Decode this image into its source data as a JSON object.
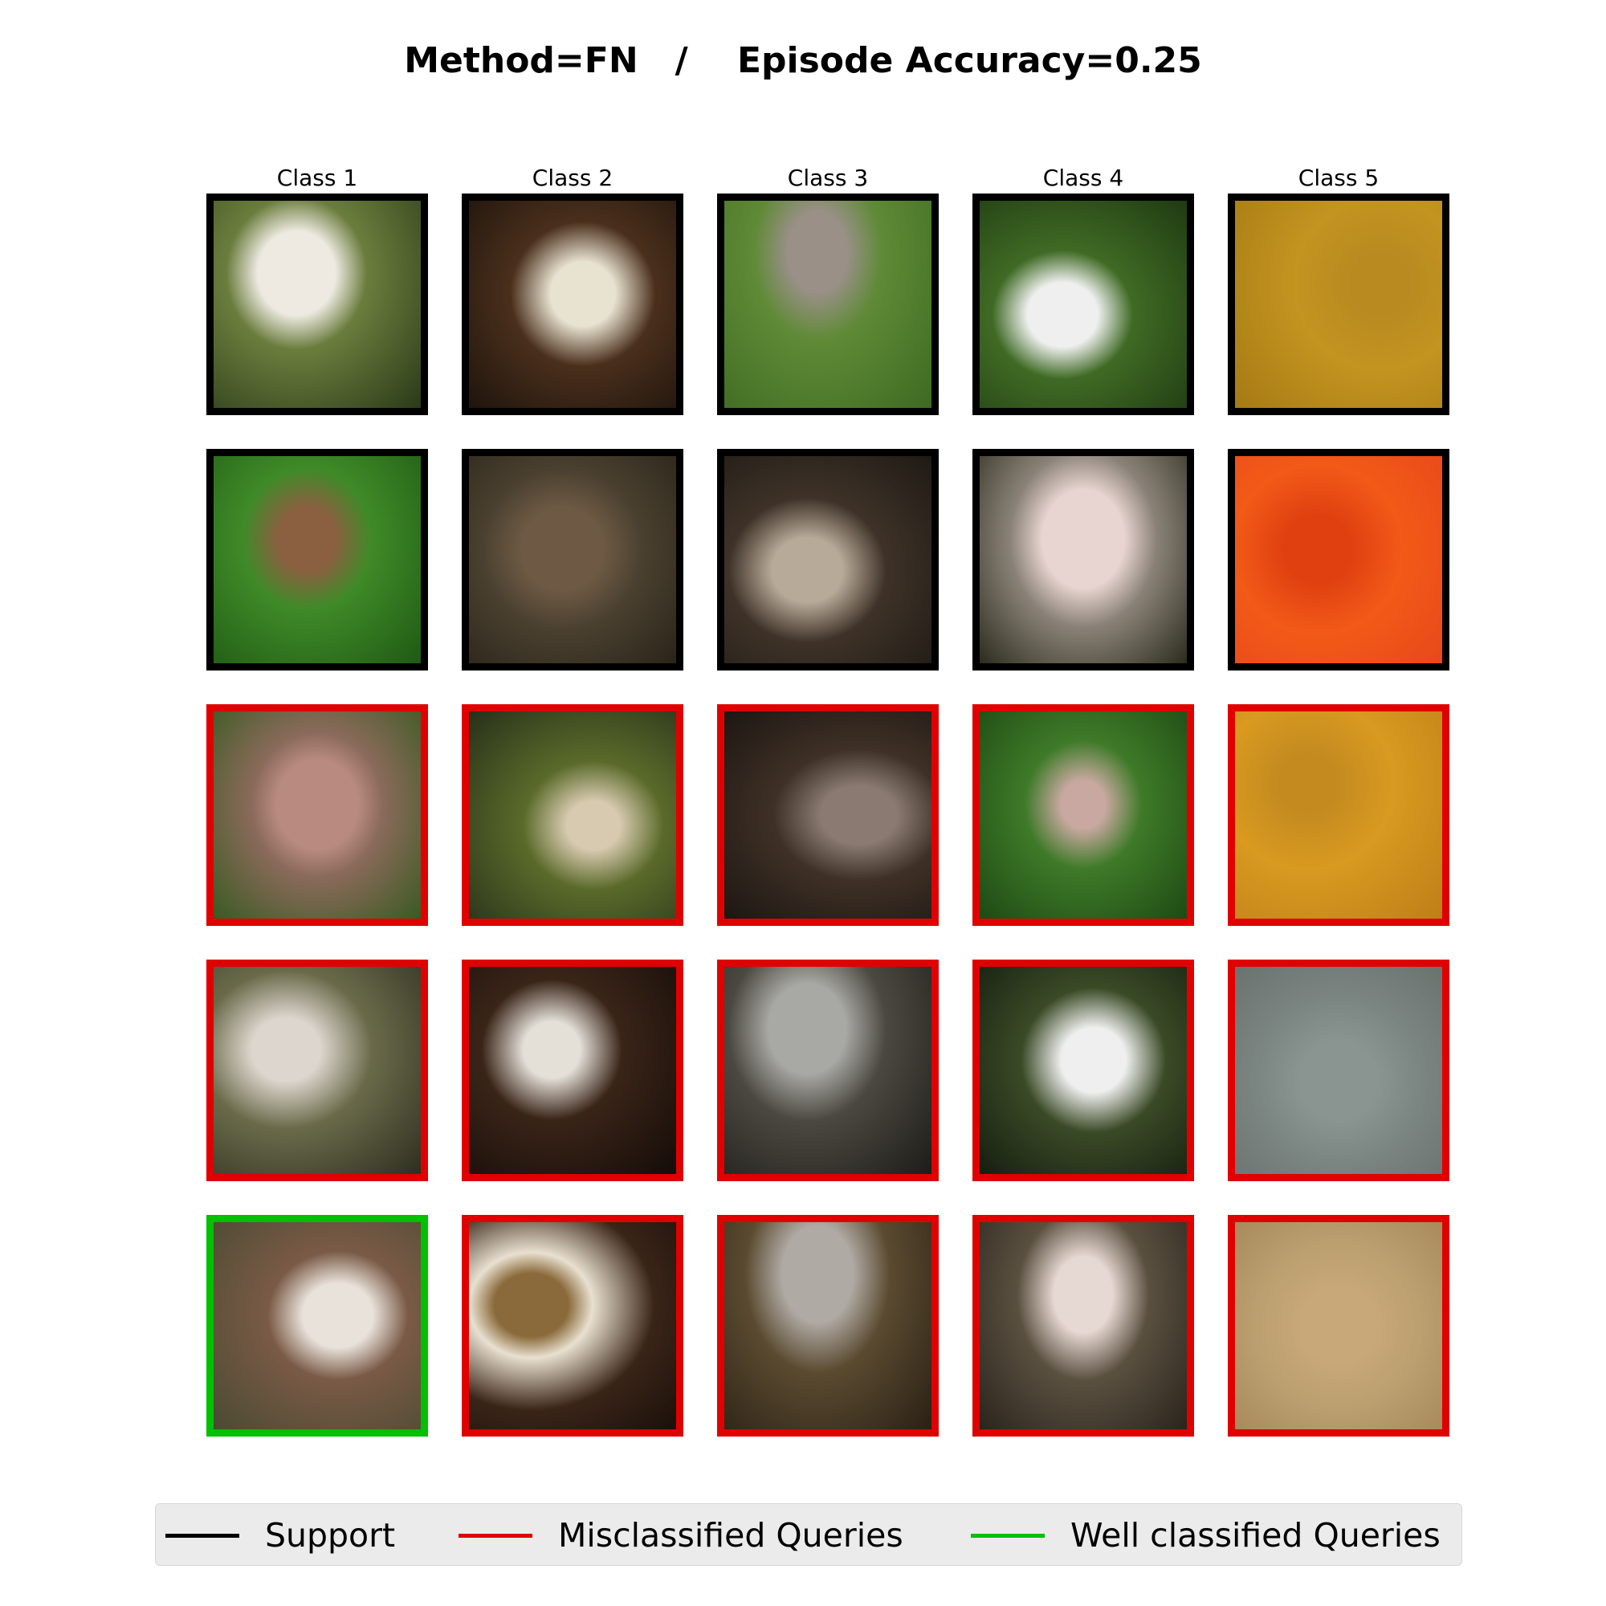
{
  "title": "Method=FN   /    Episode Accuracy=0.25",
  "columns": [
    "Class 1",
    "Class 2",
    "Class 3",
    "Class 4",
    "Class 5"
  ],
  "colors": {
    "support": "#000000",
    "misclassified": "#e00000",
    "well": "#00c000"
  },
  "grid": [
    [
      "support",
      "support",
      "support",
      "support",
      "support"
    ],
    [
      "support",
      "support",
      "support",
      "support",
      "support"
    ],
    [
      "misclassified",
      "misclassified",
      "misclassified",
      "misclassified",
      "misclassified"
    ],
    [
      "misclassified",
      "misclassified",
      "misclassified",
      "misclassified",
      "misclassified"
    ],
    [
      "well",
      "misclassified",
      "misclassified",
      "misclassified",
      "misclassified"
    ]
  ],
  "legend": {
    "support": "Support",
    "misclassified": "Misclassified Queries",
    "well": "Well classified Queries"
  }
}
